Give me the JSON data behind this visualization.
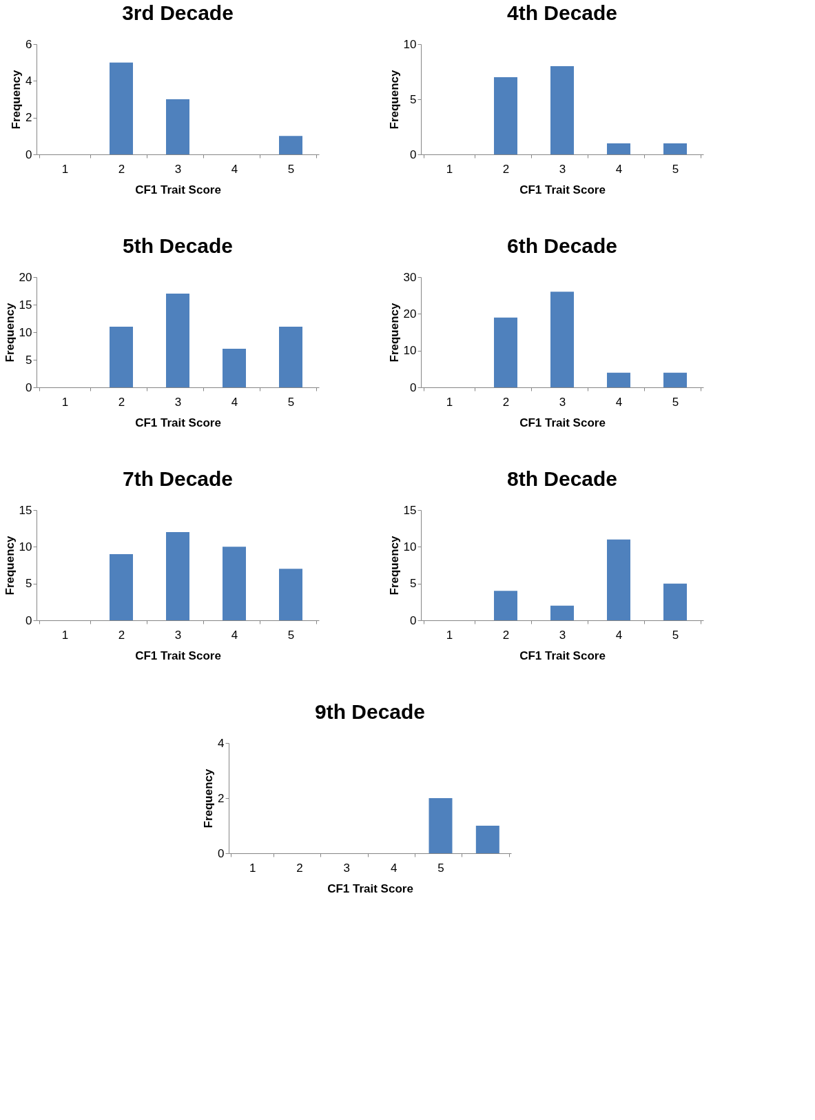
{
  "chart_data": [
    {
      "type": "bar",
      "title": "3rd Decade",
      "xlabel": "CF1 Trait Score",
      "ylabel": "Frequency",
      "categories": [
        "1",
        "2",
        "3",
        "4",
        "5"
      ],
      "values": [
        0,
        5,
        3,
        0,
        1
      ],
      "color": "#4f81bd",
      "ylim": [
        0,
        6
      ],
      "yticks": [
        0,
        2,
        4,
        6
      ]
    },
    {
      "type": "bar",
      "title": "4th Decade",
      "xlabel": "CF1 Trait Score",
      "ylabel": "Frequency",
      "categories": [
        "1",
        "2",
        "3",
        "4",
        "5"
      ],
      "values": [
        0,
        7,
        8,
        1,
        1
      ],
      "color": "#4f81bd",
      "ylim": [
        0,
        10
      ],
      "yticks": [
        0,
        5,
        10
      ]
    },
    {
      "type": "bar",
      "title": "5th Decade",
      "xlabel": "CF1 Trait Score",
      "ylabel": "Frequency",
      "categories": [
        "1",
        "2",
        "3",
        "4",
        "5"
      ],
      "values": [
        0,
        11,
        17,
        7,
        11
      ],
      "color": "#4f81bd",
      "ylim": [
        0,
        20
      ],
      "yticks": [
        0,
        5,
        10,
        15,
        20
      ]
    },
    {
      "type": "bar",
      "title": "6th Decade",
      "xlabel": "CF1 Trait Score",
      "ylabel": "Frequency",
      "categories": [
        "1",
        "2",
        "3",
        "4",
        "5"
      ],
      "values": [
        0,
        19,
        26,
        4,
        4
      ],
      "color": "#4f81bd",
      "ylim": [
        0,
        30
      ],
      "yticks": [
        0,
        10,
        20,
        30
      ]
    },
    {
      "type": "bar",
      "title": "7th Decade",
      "xlabel": "CF1 Trait Score",
      "ylabel": "Frequency",
      "categories": [
        "1",
        "2",
        "3",
        "4",
        "5"
      ],
      "values": [
        0,
        9,
        12,
        10,
        7
      ],
      "color": "#4f81bd",
      "ylim": [
        0,
        15
      ],
      "yticks": [
        0,
        5,
        10,
        15
      ]
    },
    {
      "type": "bar",
      "title": "8th Decade",
      "xlabel": "CF1 Trait Score",
      "ylabel": "Frequency",
      "categories": [
        "1",
        "2",
        "3",
        "4",
        "5"
      ],
      "values": [
        0,
        4,
        2,
        11,
        5
      ],
      "color": "#4f81bd",
      "ylim": [
        0,
        15
      ],
      "yticks": [
        0,
        5,
        10,
        15
      ]
    },
    {
      "type": "bar",
      "title": "9th Decade",
      "xlabel": "CF1 Trait Score",
      "ylabel": "Frequency",
      "categories": [
        "1",
        "2",
        "3",
        "4",
        "5",
        null
      ],
      "values": [
        0,
        0,
        0,
        0,
        2,
        1
      ],
      "color": "#4f81bd",
      "ylim": [
        0,
        4
      ],
      "yticks": [
        0,
        2,
        4
      ]
    }
  ]
}
